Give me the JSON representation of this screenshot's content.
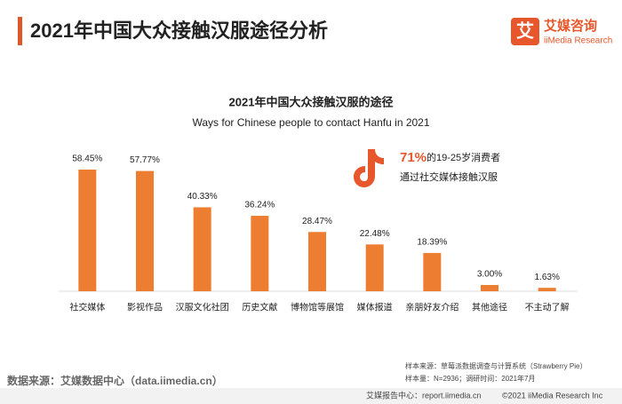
{
  "header": {
    "title": "2021年中国大众接触汉服途径分析",
    "logo_text": "艾媒咨询",
    "logo_subtext": "iiMedia Research",
    "logo_mark": "艾"
  },
  "chart_data": {
    "type": "bar",
    "title": "2021年中国大众接触汉服的途径",
    "subtitle": "Ways for Chinese people to contact Hanfu in 2021",
    "categories": [
      "社交媒体",
      "影视作品",
      "汉服文化社团",
      "历史文献",
      "博物馆等展馆",
      "媒体报道",
      "亲朋好友介绍",
      "其他途径",
      "不主动了解"
    ],
    "values": [
      58.45,
      57.77,
      40.33,
      36.24,
      28.47,
      22.48,
      18.39,
      3.0,
      1.63
    ],
    "value_labels": [
      "58.45%",
      "57.77%",
      "40.33%",
      "36.24%",
      "28.47%",
      "22.48%",
      "18.39%",
      "3.00%",
      "1.63%"
    ],
    "color": "#ed7d31",
    "annotation": {
      "highlight": "71%",
      "line1": "的19-25岁消费者",
      "line2": "通过社交媒体接触汉服"
    }
  },
  "footer": {
    "source": "数据来源：艾媒数据中心（data.iimedia.cn）",
    "sample_source": "样本来源：草莓派数据调查与计算系统（Strawberry Pie）",
    "sample_size": "样本量：N=2936；调研时间：2021年7月",
    "report_center": "艾媒报告中心：report.iimedia.cn",
    "copyright": "©2021  iiMedia Research  Inc"
  }
}
